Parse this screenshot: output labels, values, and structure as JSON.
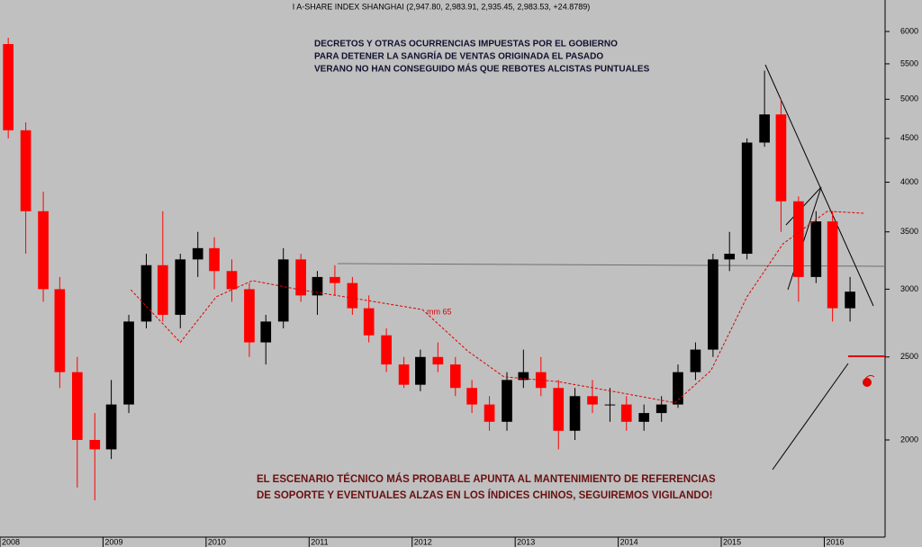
{
  "chart_data": {
    "type": "candlestick",
    "title": "I A-SHARE INDEX SHANGHAI (2,947.80, 2,983.91, 2,935.45, 2,983.53, +24.8789)",
    "x": [
      2008.08,
      2008.25,
      2008.42,
      2008.58,
      2008.75,
      2008.92,
      2009.08,
      2009.25,
      2009.42,
      2009.58,
      2009.75,
      2009.92,
      2010.08,
      2010.25,
      2010.42,
      2010.58,
      2010.75,
      2010.92,
      2011.08,
      2011.25,
      2011.42,
      2011.58,
      2011.75,
      2011.92,
      2012.08,
      2012.25,
      2012.42,
      2012.58,
      2012.75,
      2012.92,
      2013.08,
      2013.25,
      2013.42,
      2013.58,
      2013.75,
      2013.92,
      2014.08,
      2014.25,
      2014.42,
      2014.58,
      2014.75,
      2014.92,
      2015.08,
      2015.25,
      2015.42,
      2015.58,
      2015.75,
      2015.92,
      2016.08,
      2016.25
    ],
    "open": [
      5800,
      4600,
      3700,
      3000,
      2400,
      2000,
      1950,
      2200,
      2750,
      3200,
      2800,
      3250,
      3350,
      3150,
      3000,
      2600,
      2750,
      3250,
      2950,
      3100,
      3050,
      2850,
      2650,
      2450,
      2320,
      2500,
      2450,
      2300,
      2200,
      2100,
      2350,
      2400,
      2300,
      2050,
      2250,
      2200,
      2200,
      2100,
      2150,
      2200,
      2400,
      2550,
      3250,
      3300,
      4450,
      4800,
      3800,
      3100,
      3600,
      2850
    ],
    "high": [
      5900,
      4700,
      3900,
      3100,
      2500,
      2150,
      2350,
      2800,
      3300,
      3700,
      3300,
      3500,
      3450,
      3250,
      3050,
      2800,
      3350,
      3300,
      3150,
      3200,
      3100,
      2950,
      2700,
      2500,
      2550,
      2600,
      2500,
      2350,
      2250,
      2400,
      2550,
      2500,
      2350,
      2300,
      2350,
      2300,
      2250,
      2200,
      2250,
      2450,
      2600,
      3300,
      3500,
      4500,
      5400,
      5000,
      3850,
      3700,
      3700,
      3100
    ],
    "low": [
      4500,
      3300,
      2900,
      2300,
      1760,
      1700,
      1900,
      2150,
      2700,
      2750,
      2700,
      3100,
      3000,
      2900,
      2500,
      2450,
      2700,
      2900,
      2800,
      2950,
      2800,
      2600,
      2400,
      2300,
      2280,
      2400,
      2250,
      2150,
      2050,
      2050,
      2300,
      2250,
      1950,
      2000,
      2150,
      2100,
      2050,
      2050,
      2100,
      2180,
      2350,
      2500,
      3150,
      3250,
      4400,
      3500,
      2900,
      3050,
      2750,
      2750
    ],
    "close": [
      4600,
      3700,
      3000,
      2400,
      2000,
      1950,
      2200,
      2750,
      3200,
      2800,
      3250,
      3350,
      3150,
      3000,
      2600,
      2750,
      3250,
      2950,
      3100,
      3050,
      2850,
      2650,
      2450,
      2320,
      2500,
      2450,
      2300,
      2200,
      2100,
      2350,
      2400,
      2300,
      2050,
      2250,
      2200,
      2200,
      2100,
      2150,
      2200,
      2400,
      2550,
      3250,
      3300,
      4450,
      4800,
      3800,
      3100,
      3600,
      2850,
      2980
    ],
    "up_color": "#000000",
    "down_color": "#ff0000",
    "ma": {
      "name": "mm 65",
      "color": "#e00000",
      "x": [
        2009.27,
        2009.75,
        2010.1,
        2010.45,
        2010.88,
        2011.49,
        2012.1,
        2012.54,
        2012.89,
        2013.41,
        2013.94,
        2014.55,
        2014.9,
        2015.25,
        2015.6,
        2016.03,
        2016.38
      ],
      "values": [
        2995,
        2600,
        2940,
        3070,
        3000,
        2920,
        2840,
        2540,
        2370,
        2340,
        2280,
        2210,
        2410,
        2940,
        3390,
        3700,
        3680
      ]
    },
    "annotations": [
      "DECRETOS Y OTRAS OCURRENCIAS IMPUESTAS POR EL GOBIERNO",
      "PARA DETENER LA SANGRÍA DE VENTAS ORIGINADA EL PASADO",
      "VERANO NO HAN CONSEGUIDO MÁS QUE REBOTES ALCISTAS PUNTUALES",
      "EL ESCENARIO TÉCNICO MÁS PROBABLE APUNTA AL MANTENIMIENTO DE REFERENCIAS",
      "DE SOPORTE Y EVENTUALES ALZAS EN LOS ÍNDICES CHINOS,  SEGUIREMOS VIGILANDO!"
    ],
    "xlim": [
      2008,
      2016.59
    ],
    "ylim": [
      1540,
      6530
    ],
    "log_scale": true,
    "xticks": [
      2008,
      2009,
      2010,
      2011,
      2012,
      2013,
      2014,
      2015,
      2016
    ],
    "yticks": [
      2000,
      2500,
      3000,
      3500,
      4000,
      4500,
      5000,
      5500,
      6000
    ]
  }
}
